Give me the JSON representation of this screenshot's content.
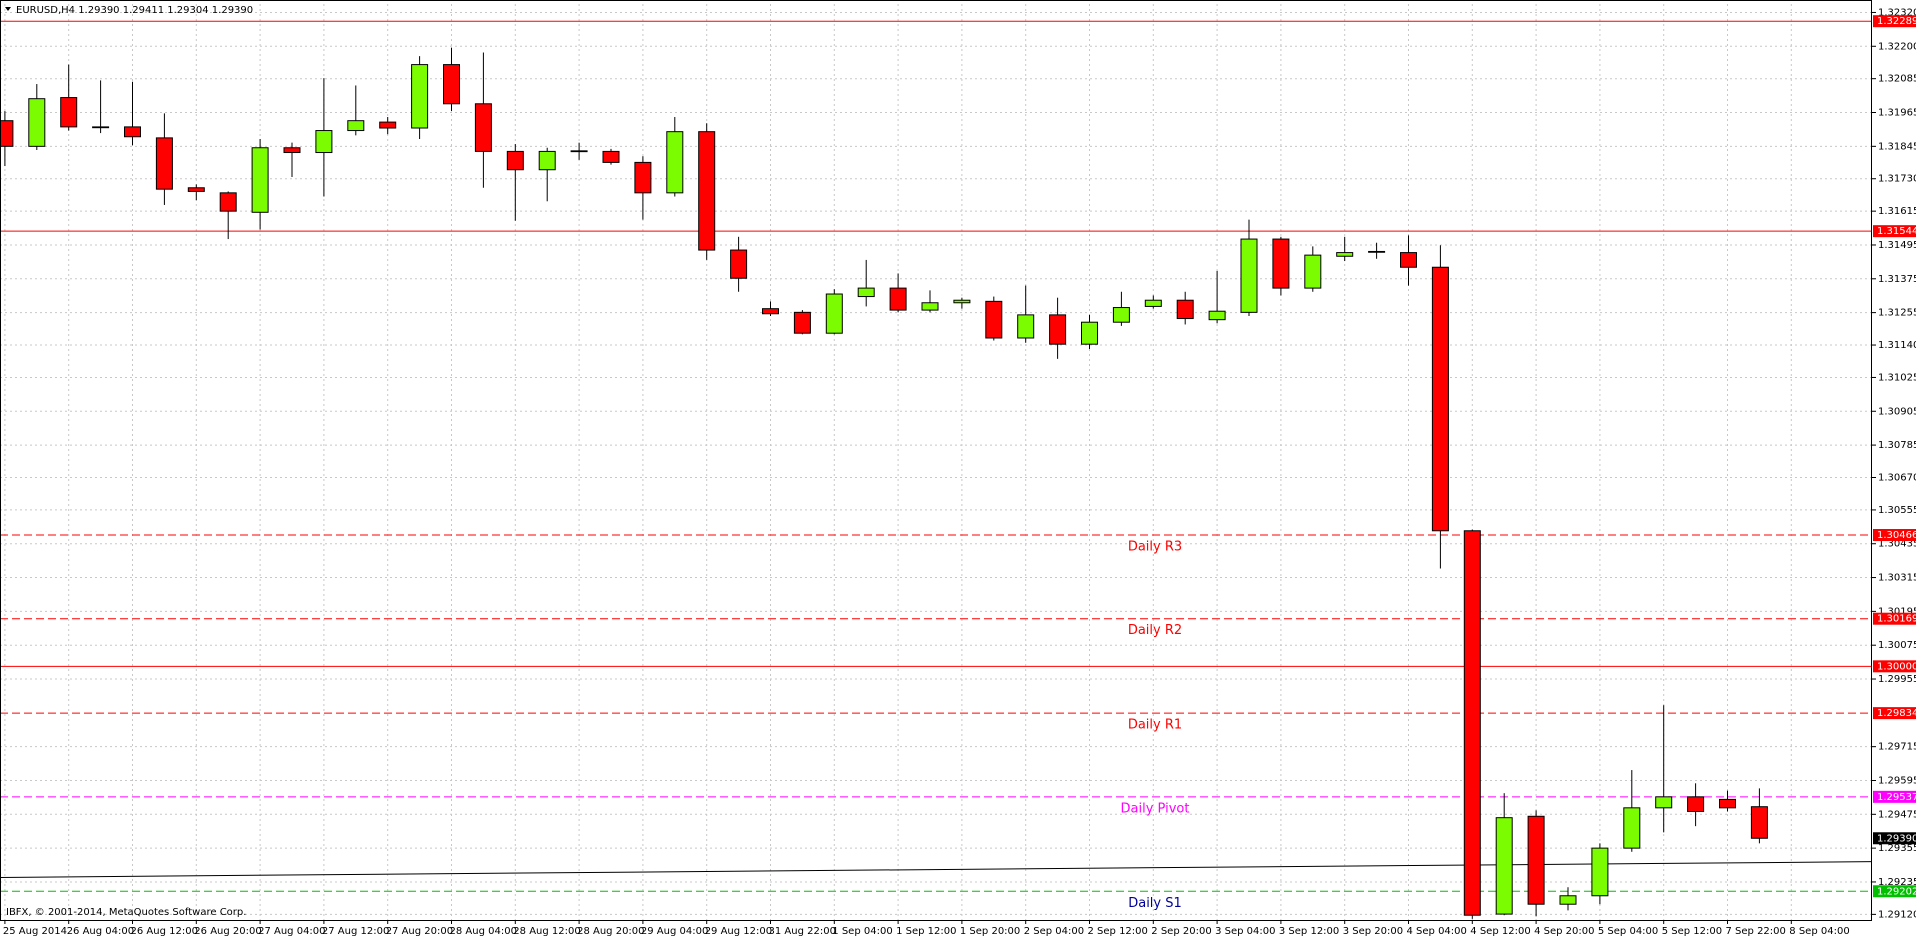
{
  "chart_data": {
    "type": "candlestick",
    "title": "EURUSD,H4  1.29390 1.29411 1.29304 1.29390",
    "footer": "IBFX, © 2001-2014, MetaQuotes Software Corp.",
    "categories": [
      "25 Aug 2014",
      null,
      "26 Aug 04:00",
      null,
      "26 Aug 12:00",
      null,
      "26 Aug 20:00",
      null,
      "27 Aug 04:00",
      null,
      "27 Aug 12:00",
      null,
      "27 Aug 20:00",
      null,
      "28 Aug 04:00",
      null,
      "28 Aug 12:00",
      null,
      "28 Aug 20:00",
      null,
      "29 Aug 04:00",
      null,
      "29 Aug 12:00",
      null,
      "31 Aug 22:00",
      null,
      "1 Sep 04:00",
      null,
      "1 Sep 12:00",
      null,
      "1 Sep 20:00",
      null,
      "2 Sep 04:00",
      null,
      "2 Sep 12:00",
      null,
      "2 Sep 20:00",
      null,
      "3 Sep 04:00",
      null,
      "3 Sep 12:00",
      null,
      "3 Sep 20:00",
      null,
      "4 Sep 04:00",
      null,
      "4 Sep 12:00",
      null,
      "4 Sep 20:00",
      null,
      "5 Sep 04:00",
      null,
      "5 Sep 12:00",
      null,
      "7 Sep 22:00",
      null,
      "8 Sep 04:00"
    ],
    "open": [
      1.31936,
      1.31845,
      1.32018,
      1.31914,
      1.31914,
      1.31875,
      1.31698,
      1.3168,
      1.31611,
      1.3184,
      1.31823,
      1.31901,
      1.31931,
      1.3191,
      1.32135,
      1.31996,
      1.31827,
      1.31762,
      1.31827,
      1.31827,
      1.31788,
      1.3168,
      1.31897,
      1.31477,
      1.31269,
      1.31256,
      1.31182,
      1.31312,
      1.31342,
      1.31264,
      1.3129,
      1.31295,
      1.31165,
      1.31247,
      1.31143,
      1.31221,
      1.31277,
      1.31299,
      1.3123,
      1.31256,
      1.31516,
      1.31342,
      1.31455,
      1.31472,
      1.31468,
      1.31416,
      1.30481,
      1.29121,
      1.29468,
      1.29156,
      1.29186,
      1.29355,
      1.29498,
      1.29537,
      1.29528,
      1.29502,
      null
    ],
    "high": [
      1.3197,
      1.32066,
      1.32135,
      1.32079,
      1.32074,
      1.31962,
      1.3171,
      1.31685,
      1.31871,
      1.31858,
      1.32087,
      1.32061,
      1.31949,
      1.32165,
      1.32195,
      1.32178,
      1.31853,
      1.3184,
      1.31858,
      1.31836,
      1.3181,
      1.31949,
      1.31927,
      1.31524,
      1.31295,
      1.31264,
      1.31338,
      1.31442,
      1.31394,
      1.31334,
      1.31308,
      1.31312,
      1.31351,
      1.31308,
      1.31247,
      1.31329,
      1.31316,
      1.31329,
      1.31403,
      1.31585,
      1.31524,
      1.3149,
      1.31524,
      1.31503,
      1.31529,
      1.31494,
      1.30485,
      1.2955,
      1.29489,
      1.29216,
      1.29372,
      1.29632,
      1.29862,
      1.29585,
      1.29559,
      1.29567,
      null
    ],
    "low": [
      1.31775,
      1.31832,
      1.31901,
      1.31892,
      1.31849,
      1.31637,
      1.31654,
      1.31516,
      1.3155,
      1.31736,
      1.31667,
      1.31884,
      1.31888,
      1.31871,
      1.3197,
      1.31698,
      1.31581,
      1.3165,
      1.31797,
      1.3178,
      1.31585,
      1.31667,
      1.31442,
      1.31329,
      1.31243,
      1.31178,
      1.31178,
      1.31277,
      1.31256,
      1.31256,
      1.31269,
      1.31156,
      1.31148,
      1.31091,
      1.31126,
      1.31208,
      1.31269,
      1.31213,
      1.31217,
      1.31243,
      1.31316,
      1.31329,
      1.31438,
      1.31446,
      1.31351,
      1.30347,
      1.29104,
      1.29117,
      1.29113,
      1.29134,
      1.29156,
      1.29342,
      1.29411,
      1.29433,
      1.29485,
      1.29372,
      null
    ],
    "close": [
      1.31845,
      1.32014,
      1.31914,
      1.31912,
      1.31879,
      1.31693,
      1.31685,
      1.31615,
      1.3184,
      1.31823,
      1.31901,
      1.31936,
      1.3191,
      1.32135,
      1.31996,
      1.31827,
      1.31762,
      1.31827,
      1.31829,
      1.31788,
      1.3168,
      1.31897,
      1.31477,
      1.31377,
      1.31251,
      1.31182,
      1.31321,
      1.31342,
      1.31264,
      1.3129,
      1.31299,
      1.31165,
      1.31247,
      1.31143,
      1.31221,
      1.31273,
      1.31299,
      1.31234,
      1.3126,
      1.31516,
      1.31342,
      1.31459,
      1.31468,
      1.3147,
      1.31416,
      1.30481,
      1.29117,
      1.29463,
      1.29156,
      1.29186,
      1.29355,
      1.29498,
      1.29537,
      1.29485,
      1.29498,
      1.2939,
      null
    ],
    "up_color": "#7cfc00",
    "down_color": "#ff0000",
    "ylim": [
      1.291,
      1.3235
    ],
    "yticks": [
      {
        "value": 1.3232,
        "label": "1.32320"
      },
      {
        "value": 1.322,
        "label": "1.32200"
      },
      1.32085,
      1.31965,
      1.31845,
      {
        "value": 1.3173,
        "label": "1.31730"
      },
      1.31615,
      1.31495,
      1.31375,
      1.31255,
      {
        "value": 1.3114,
        "label": "1.31140"
      },
      1.31025,
      1.30905,
      1.30785,
      {
        "value": 1.3067,
        "label": "1.30670"
      },
      1.30555,
      1.30435,
      1.30315,
      1.30195,
      1.30075,
      1.29955,
      1.29715,
      1.29595,
      1.29475,
      1.29355,
      1.29235,
      {
        "value": 1.2912,
        "label": "1.29120"
      }
    ],
    "grid": true,
    "levels": [
      {
        "value": 1.32289,
        "color": "#ff0000",
        "dashed": false
      },
      {
        "value": 1.31544,
        "color": "#ff0000",
        "dashed": false
      },
      {
        "value": 1.30466,
        "color": "#ff0000",
        "dashed": true,
        "name": "Daily R3",
        "name_color": "#ff0000"
      },
      {
        "value": 1.30169,
        "color": "#ff0000",
        "dashed": true,
        "name": "Daily R2",
        "name_color": "#ff0000"
      },
      {
        "value": 1.3,
        "label": "1.30000",
        "color": "#ff0000",
        "dashed": false
      },
      {
        "value": 1.29834,
        "color": "#ff0000",
        "dashed": true,
        "name": "Daily R1",
        "name_color": "#ff0000"
      },
      {
        "value": 1.29537,
        "color": "#ff00ff",
        "dashed": true,
        "name": "Daily Pivot",
        "name_color": "#ff00ff"
      },
      {
        "value": 1.29202,
        "color": "#00c000",
        "dashed": true,
        "name": "Daily S1",
        "name_color": "#000099"
      }
    ],
    "last_price": {
      "value": 1.2939,
      "label": "1.29390",
      "color": "#000000"
    },
    "trendline": {
      "start": 1.29251,
      "end": 1.29307,
      "color": "#000000"
    }
  }
}
